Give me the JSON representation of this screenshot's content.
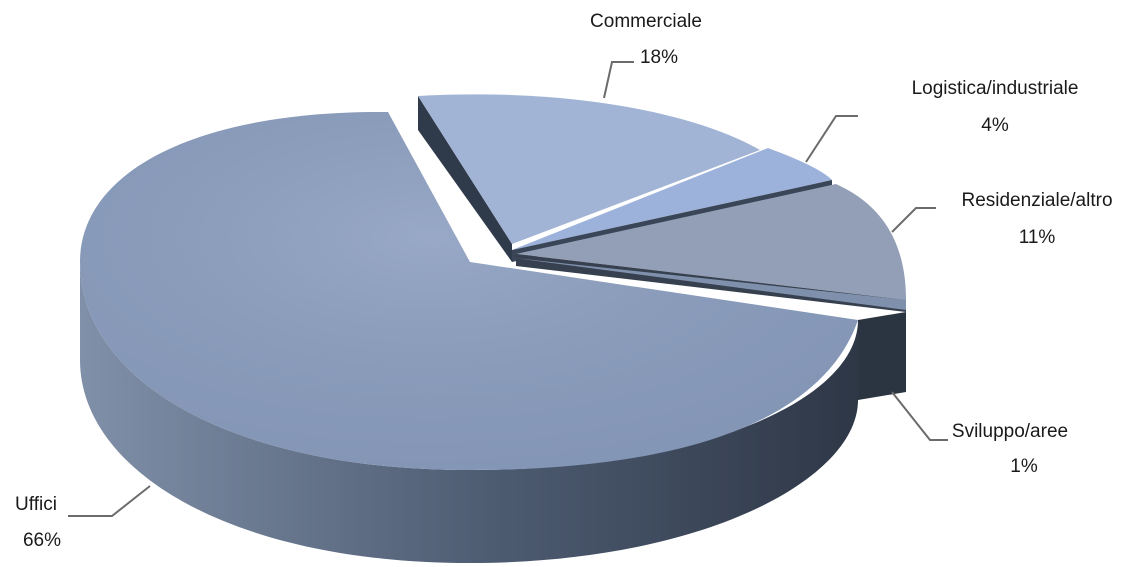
{
  "chart_data": {
    "type": "pie",
    "style": "3d-exploded",
    "title": "",
    "slices": [
      {
        "name": "Uffici",
        "value": 66,
        "label": "66%",
        "color": "#8da0c3"
      },
      {
        "name": "Commerciale",
        "value": 18,
        "label": "18%",
        "color": "#a3b6d8"
      },
      {
        "name": "Logistica/industriale",
        "value": 4,
        "label": "4%",
        "color": "#9fb4dc"
      },
      {
        "name": "Residenziale/altro",
        "value": 11,
        "label": "11%",
        "color": "#94a1b8"
      },
      {
        "name": "Sviluppo/aree",
        "value": 1,
        "label": "1%",
        "color": "#8a9cba"
      }
    ],
    "side_color": "#3d4a5c"
  }
}
